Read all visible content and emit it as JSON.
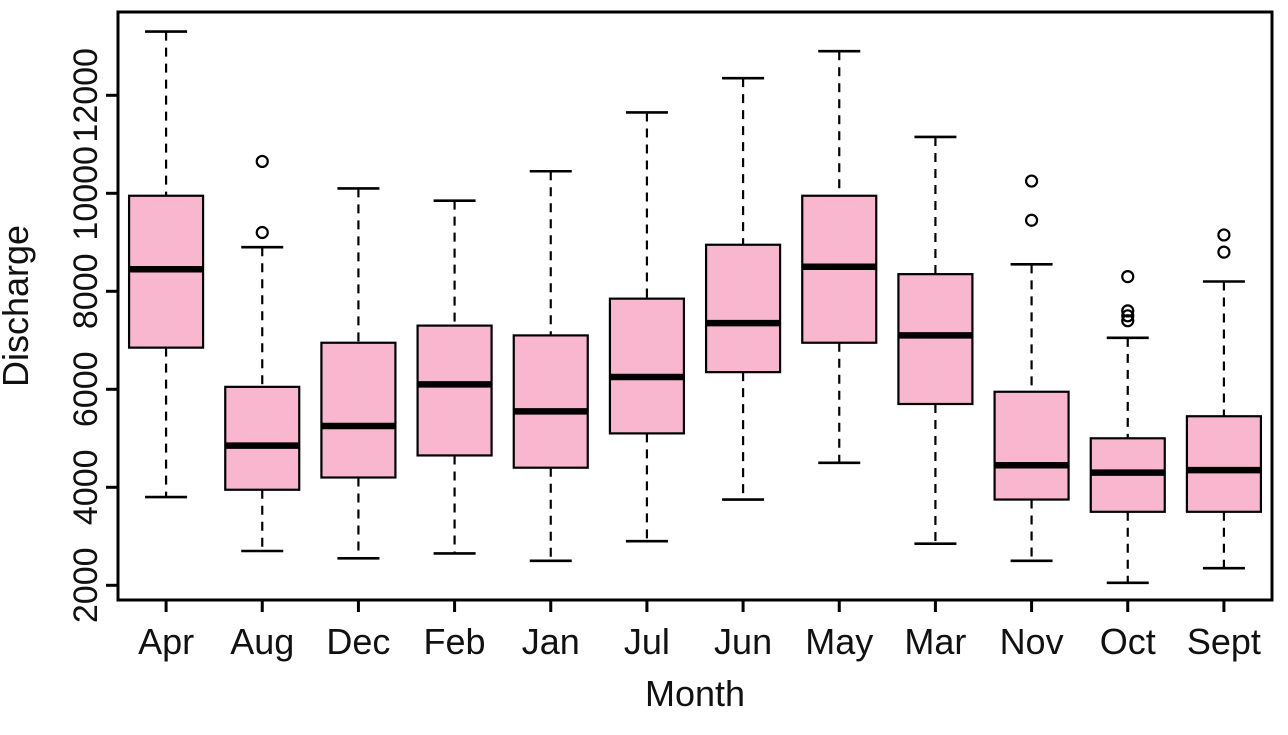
{
  "chart_data": {
    "type": "boxplot",
    "title": "",
    "xlabel": "Month",
    "ylabel": "Discharge",
    "ylim": [
      1700,
      13700
    ],
    "yticks": [
      2000,
      4000,
      6000,
      8000,
      10000,
      12000
    ],
    "grid": false,
    "legend": "none",
    "box_fill": "#F8B7CE",
    "box_stroke": "#000000",
    "median_color": "#000000",
    "whisker_style": "dashed",
    "categories": [
      "Apr",
      "Aug",
      "Dec",
      "Feb",
      "Jan",
      "Jul",
      "Jun",
      "May",
      "Mar",
      "Nov",
      "Oct",
      "Sept"
    ],
    "series": [
      {
        "month": "Apr",
        "low": 3800,
        "q1": 6850,
        "median": 8450,
        "q3": 9950,
        "high": 13300,
        "outliers": []
      },
      {
        "month": "Aug",
        "low": 2700,
        "q1": 3950,
        "median": 4850,
        "q3": 6050,
        "high": 8900,
        "outliers": [
          10650,
          9200
        ]
      },
      {
        "month": "Dec",
        "low": 2550,
        "q1": 4200,
        "median": 5250,
        "q3": 6950,
        "high": 10100,
        "outliers": []
      },
      {
        "month": "Feb",
        "low": 2650,
        "q1": 4650,
        "median": 6100,
        "q3": 7300,
        "high": 9850,
        "outliers": []
      },
      {
        "month": "Jan",
        "low": 2500,
        "q1": 4400,
        "median": 5550,
        "q3": 7100,
        "high": 10450,
        "outliers": []
      },
      {
        "month": "Jul",
        "low": 2900,
        "q1": 5100,
        "median": 6250,
        "q3": 7850,
        "high": 11650,
        "outliers": []
      },
      {
        "month": "Jun",
        "low": 3750,
        "q1": 6350,
        "median": 7350,
        "q3": 8950,
        "high": 12350,
        "outliers": []
      },
      {
        "month": "May",
        "low": 4500,
        "q1": 6950,
        "median": 8500,
        "q3": 9950,
        "high": 12900,
        "outliers": []
      },
      {
        "month": "Mar",
        "low": 2850,
        "q1": 5700,
        "median": 7100,
        "q3": 8350,
        "high": 11150,
        "outliers": []
      },
      {
        "month": "Nov",
        "low": 2500,
        "q1": 3750,
        "median": 4450,
        "q3": 5950,
        "high": 8550,
        "outliers": [
          10250,
          9450
        ]
      },
      {
        "month": "Oct",
        "low": 2050,
        "q1": 3500,
        "median": 4300,
        "q3": 5000,
        "high": 7050,
        "outliers": [
          8300,
          7600,
          7500,
          7400
        ]
      },
      {
        "month": "Sept",
        "low": 2350,
        "q1": 3500,
        "median": 4350,
        "q3": 5450,
        "high": 8200,
        "outliers": [
          9150,
          8800
        ]
      }
    ]
  }
}
